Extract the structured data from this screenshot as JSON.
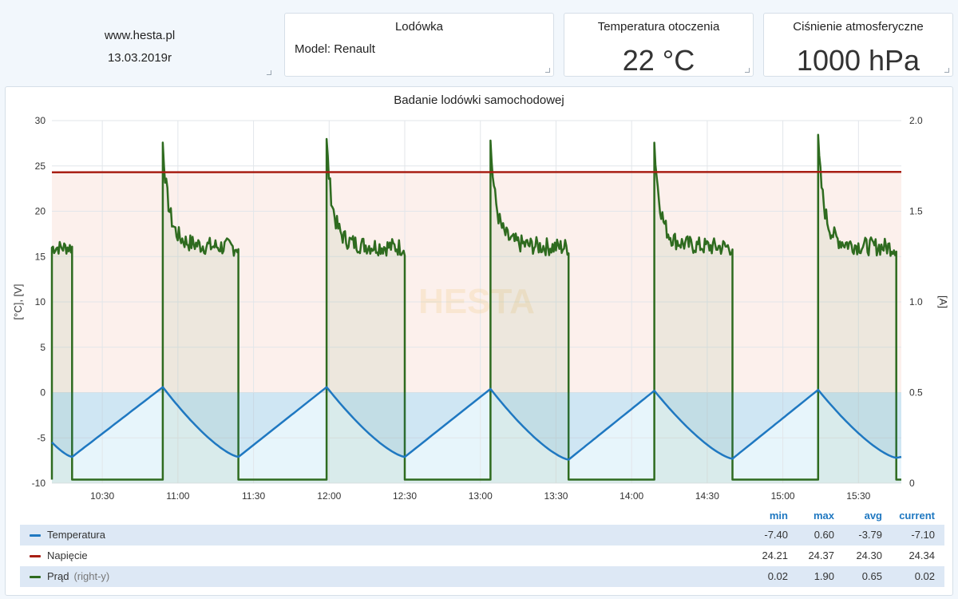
{
  "header": {
    "site": "www.hesta.pl",
    "date": "13.03.2019r"
  },
  "fridge_panel": {
    "title": "Lodówka",
    "model": "Model: Renault"
  },
  "ambient_panel": {
    "title": "Temperatura otoczenia",
    "value": "22 °C"
  },
  "pressure_panel": {
    "title": "Ciśnienie atmosferyczne",
    "value": "1000 hPa"
  },
  "colors": {
    "temperature": "#1f78c1",
    "voltage": "#a81e13",
    "current": "#2e6b1f",
    "accent": "#1f78c1"
  },
  "chart_data": {
    "type": "line",
    "title": "Badanie lodówki samochodowej",
    "watermark": "HESTA",
    "ylabel": "[°C], [V]",
    "y2label": "[A]",
    "ylim": [
      -10,
      30
    ],
    "y2lim": [
      0,
      2.0
    ],
    "yticks": [
      "30",
      "25",
      "20",
      "15",
      "10",
      "5",
      "0",
      "-5",
      "-10"
    ],
    "y2ticks": [
      "2.0",
      "1.5",
      "1.0",
      "0.5",
      "0"
    ],
    "xticks": [
      "10:30",
      "11:00",
      "11:30",
      "12:00",
      "12:30",
      "13:00",
      "13:30",
      "14:00",
      "14:30",
      "15:00",
      "15:30"
    ],
    "x_range_minutes": [
      610,
      947
    ],
    "xtick_minutes": [
      630,
      660,
      690,
      720,
      750,
      780,
      810,
      840,
      870,
      900,
      930
    ],
    "grid": true,
    "series": [
      {
        "name": "Temperatura",
        "axis": "left",
        "cycles_start": [
          610,
          617,
          618,
          684,
          750,
          815,
          880,
          947
        ],
        "points_minutes": [
          610,
          618,
          654,
          684,
          719,
          750,
          784,
          815,
          849,
          880,
          914,
          945,
          947
        ],
        "values": [
          -5.5,
          -7.1,
          0.6,
          -7.1,
          0.6,
          -7.1,
          0.4,
          -7.4,
          0.2,
          -7.3,
          0.3,
          -7.2,
          -7.1
        ],
        "min": "-7.40",
        "max": "0.60",
        "avg": "-3.79",
        "current": "-7.10"
      },
      {
        "name": "Napięcie",
        "axis": "left",
        "points_minutes": [
          610,
          947
        ],
        "values": [
          24.3,
          24.34
        ],
        "min": "24.21",
        "max": "24.37",
        "avg": "24.30",
        "current": "24.34"
      },
      {
        "name": "Prąd",
        "axis": "right",
        "axis_label": "(right-y)",
        "on_intervals_minutes": [
          [
            610,
            618
          ],
          [
            654,
            684
          ],
          [
            719,
            750
          ],
          [
            784,
            815
          ],
          [
            849,
            880
          ],
          [
            914,
            945
          ]
        ],
        "peak": 1.8,
        "plateau": 1.3,
        "off": 0.02,
        "min": "0.02",
        "max": "1.90",
        "avg": "0.65",
        "current": "0.02"
      }
    ],
    "legend_headers": [
      "min",
      "max",
      "avg",
      "current"
    ]
  }
}
